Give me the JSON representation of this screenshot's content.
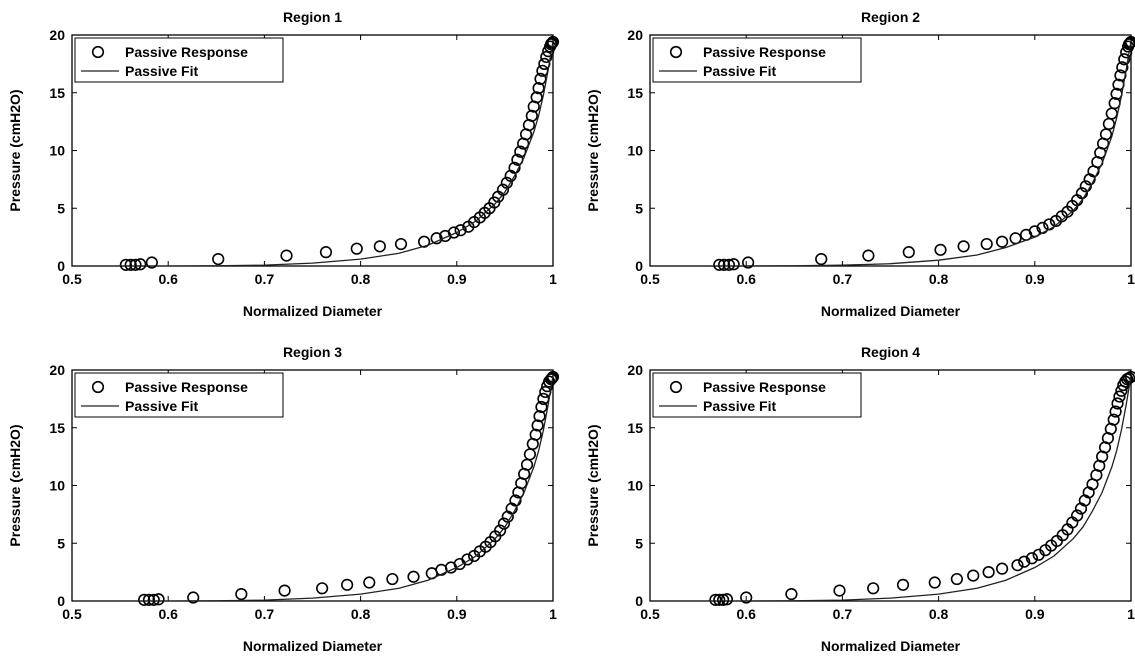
{
  "chart_data": [
    {
      "type": "scatter",
      "title": "Region 1",
      "xlabel": "Normalized Diameter",
      "ylabel": "Pressure (cmH2O)",
      "xlim": [
        0.5,
        1
      ],
      "ylim": [
        0,
        20
      ],
      "xticks": [
        "0.5",
        "0.6",
        "0.7",
        "0.8",
        "0.9",
        "1"
      ],
      "yticks": [
        "0",
        "5",
        "10",
        "15",
        "20"
      ],
      "grid": false,
      "legend_position": "top-left",
      "series": [
        {
          "name": "Passive Response",
          "style": "circle-marker",
          "x": [
            0.556,
            0.561,
            0.566,
            0.571,
            0.583,
            0.652,
            0.723,
            0.764,
            0.796,
            0.82,
            0.842,
            0.866,
            0.879,
            0.888,
            0.897,
            0.904,
            0.912,
            0.918,
            0.924,
            0.929,
            0.934,
            0.939,
            0.943,
            0.948,
            0.952,
            0.956,
            0.96,
            0.963,
            0.966,
            0.969,
            0.972,
            0.975,
            0.978,
            0.98,
            0.983,
            0.985,
            0.987,
            0.989,
            0.991,
            0.993,
            0.995,
            0.997,
            0.998,
            0.999,
            1.0
          ],
          "y": [
            0.1,
            0.1,
            0.1,
            0.15,
            0.3,
            0.6,
            0.9,
            1.2,
            1.5,
            1.7,
            1.9,
            2.1,
            2.4,
            2.6,
            2.9,
            3.1,
            3.4,
            3.8,
            4.2,
            4.6,
            5.0,
            5.5,
            6.0,
            6.6,
            7.2,
            7.8,
            8.5,
            9.2,
            9.9,
            10.6,
            11.4,
            12.2,
            13.0,
            13.8,
            14.6,
            15.4,
            16.2,
            16.9,
            17.5,
            18.1,
            18.6,
            19.0,
            19.2,
            19.3,
            19.4
          ]
        },
        {
          "name": "Passive Fit",
          "style": "line",
          "x": [
            0.55,
            0.6,
            0.65,
            0.7,
            0.75,
            0.8,
            0.84,
            0.87,
            0.9,
            0.92,
            0.94,
            0.95,
            0.96,
            0.97,
            0.98,
            0.985,
            0.99,
            0.995,
            1.0
          ],
          "y": [
            0.0,
            0.0,
            0.02,
            0.08,
            0.25,
            0.6,
            1.1,
            1.8,
            2.9,
            3.9,
            5.4,
            6.4,
            7.8,
            9.4,
            11.6,
            13.0,
            14.8,
            17.0,
            19.5
          ]
        }
      ]
    },
    {
      "type": "scatter",
      "title": "Region 2",
      "xlabel": "Normalized Diameter",
      "ylabel": "Pressure (cmH2O)",
      "xlim": [
        0.5,
        1
      ],
      "ylim": [
        0,
        20
      ],
      "xticks": [
        "0.5",
        "0.6",
        "0.7",
        "0.8",
        "0.9",
        "1"
      ],
      "yticks": [
        "0",
        "5",
        "10",
        "15",
        "20"
      ],
      "grid": false,
      "legend_position": "top-left",
      "series": [
        {
          "name": "Passive Response",
          "style": "circle-marker",
          "x": [
            0.572,
            0.577,
            0.582,
            0.587,
            0.602,
            0.678,
            0.727,
            0.769,
            0.802,
            0.826,
            0.85,
            0.866,
            0.88,
            0.891,
            0.9,
            0.908,
            0.915,
            0.922,
            0.928,
            0.934,
            0.939,
            0.944,
            0.949,
            0.953,
            0.957,
            0.961,
            0.965,
            0.968,
            0.971,
            0.974,
            0.977,
            0.98,
            0.983,
            0.985,
            0.987,
            0.989,
            0.991,
            0.993,
            0.995,
            0.997,
            0.998,
            0.999,
            1.0
          ],
          "y": [
            0.1,
            0.1,
            0.1,
            0.15,
            0.3,
            0.6,
            0.9,
            1.2,
            1.4,
            1.7,
            1.9,
            2.1,
            2.4,
            2.7,
            3.0,
            3.3,
            3.6,
            3.9,
            4.3,
            4.7,
            5.2,
            5.7,
            6.3,
            6.9,
            7.5,
            8.2,
            9.0,
            9.8,
            10.6,
            11.4,
            12.3,
            13.2,
            14.1,
            14.9,
            15.7,
            16.5,
            17.2,
            17.9,
            18.5,
            19.0,
            19.2,
            19.3,
            19.4
          ]
        },
        {
          "name": "Passive Fit",
          "style": "line",
          "x": [
            0.55,
            0.6,
            0.65,
            0.7,
            0.75,
            0.8,
            0.84,
            0.87,
            0.9,
            0.92,
            0.94,
            0.95,
            0.96,
            0.97,
            0.98,
            0.985,
            0.99,
            0.995,
            1.0
          ],
          "y": [
            0.0,
            0.0,
            0.02,
            0.07,
            0.2,
            0.5,
            0.95,
            1.6,
            2.5,
            3.4,
            4.8,
            5.8,
            7.2,
            8.9,
            11.2,
            12.8,
            14.7,
            17.0,
            19.5
          ]
        }
      ]
    },
    {
      "type": "scatter",
      "title": "Region 3",
      "xlabel": "Normalized Diameter",
      "ylabel": "Pressure (cmH2O)",
      "xlim": [
        0.5,
        1
      ],
      "ylim": [
        0,
        20
      ],
      "xticks": [
        "0.5",
        "0.6",
        "0.7",
        "0.8",
        "0.9",
        "1"
      ],
      "yticks": [
        "0",
        "5",
        "10",
        "15",
        "20"
      ],
      "grid": false,
      "legend_position": "top-left",
      "series": [
        {
          "name": "Passive Response",
          "style": "circle-marker",
          "x": [
            0.575,
            0.58,
            0.585,
            0.59,
            0.626,
            0.676,
            0.721,
            0.76,
            0.786,
            0.809,
            0.833,
            0.855,
            0.874,
            0.884,
            0.894,
            0.903,
            0.911,
            0.918,
            0.924,
            0.93,
            0.935,
            0.94,
            0.945,
            0.949,
            0.953,
            0.957,
            0.961,
            0.964,
            0.967,
            0.97,
            0.973,
            0.976,
            0.979,
            0.982,
            0.984,
            0.986,
            0.988,
            0.99,
            0.992,
            0.994,
            0.996,
            0.998,
            0.999,
            1.0
          ],
          "y": [
            0.1,
            0.1,
            0.1,
            0.15,
            0.3,
            0.6,
            0.9,
            1.1,
            1.4,
            1.6,
            1.9,
            2.1,
            2.4,
            2.7,
            2.9,
            3.2,
            3.6,
            3.9,
            4.3,
            4.7,
            5.1,
            5.6,
            6.1,
            6.7,
            7.3,
            8.0,
            8.7,
            9.4,
            10.2,
            11.0,
            11.8,
            12.7,
            13.6,
            14.4,
            15.2,
            16.0,
            16.8,
            17.5,
            18.1,
            18.6,
            19.0,
            19.2,
            19.3,
            19.4
          ]
        },
        {
          "name": "Passive Fit",
          "style": "line",
          "x": [
            0.55,
            0.6,
            0.65,
            0.7,
            0.75,
            0.8,
            0.84,
            0.87,
            0.9,
            0.92,
            0.94,
            0.95,
            0.96,
            0.97,
            0.98,
            0.985,
            0.99,
            0.995,
            1.0
          ],
          "y": [
            0.0,
            0.0,
            0.02,
            0.08,
            0.25,
            0.6,
            1.1,
            1.8,
            2.9,
            3.9,
            5.4,
            6.4,
            7.8,
            9.4,
            11.6,
            13.0,
            14.8,
            17.0,
            19.5
          ]
        }
      ]
    },
    {
      "type": "scatter",
      "title": "Region 4",
      "xlabel": "Normalized Diameter",
      "ylabel": "Pressure (cmH2O)",
      "xlim": [
        0.5,
        1
      ],
      "ylim": [
        0,
        20
      ],
      "xticks": [
        "0.5",
        "0.6",
        "0.7",
        "0.8",
        "0.9",
        "1"
      ],
      "yticks": [
        "0",
        "5",
        "10",
        "15",
        "20"
      ],
      "grid": false,
      "legend_position": "top-left",
      "series": [
        {
          "name": "Passive Response",
          "style": "circle-marker",
          "x": [
            0.568,
            0.572,
            0.576,
            0.58,
            0.6,
            0.647,
            0.697,
            0.732,
            0.763,
            0.796,
            0.819,
            0.836,
            0.852,
            0.866,
            0.882,
            0.889,
            0.897,
            0.904,
            0.911,
            0.917,
            0.923,
            0.929,
            0.934,
            0.939,
            0.944,
            0.948,
            0.952,
            0.956,
            0.96,
            0.964,
            0.967,
            0.97,
            0.973,
            0.976,
            0.979,
            0.982,
            0.984,
            0.986,
            0.988,
            0.99,
            0.992,
            0.994,
            0.996,
            0.998,
            1.0
          ],
          "y": [
            0.1,
            0.1,
            0.1,
            0.15,
            0.3,
            0.6,
            0.9,
            1.1,
            1.4,
            1.6,
            1.9,
            2.2,
            2.5,
            2.8,
            3.1,
            3.4,
            3.7,
            4.0,
            4.4,
            4.8,
            5.2,
            5.7,
            6.2,
            6.8,
            7.4,
            8.0,
            8.7,
            9.4,
            10.1,
            10.9,
            11.7,
            12.5,
            13.3,
            14.1,
            14.9,
            15.7,
            16.4,
            17.1,
            17.7,
            18.2,
            18.7,
            19.0,
            19.2,
            19.3,
            19.4
          ]
        },
        {
          "name": "Passive Fit",
          "style": "line",
          "x": [
            0.55,
            0.6,
            0.65,
            0.7,
            0.75,
            0.8,
            0.84,
            0.87,
            0.9,
            0.92,
            0.94,
            0.95,
            0.96,
            0.97,
            0.98,
            0.985,
            0.99,
            0.995,
            1.0
          ],
          "y": [
            0.0,
            0.0,
            0.02,
            0.08,
            0.25,
            0.6,
            1.1,
            1.8,
            2.9,
            3.9,
            5.4,
            6.4,
            7.8,
            9.4,
            11.6,
            13.0,
            14.8,
            17.0,
            19.5
          ]
        }
      ]
    }
  ]
}
